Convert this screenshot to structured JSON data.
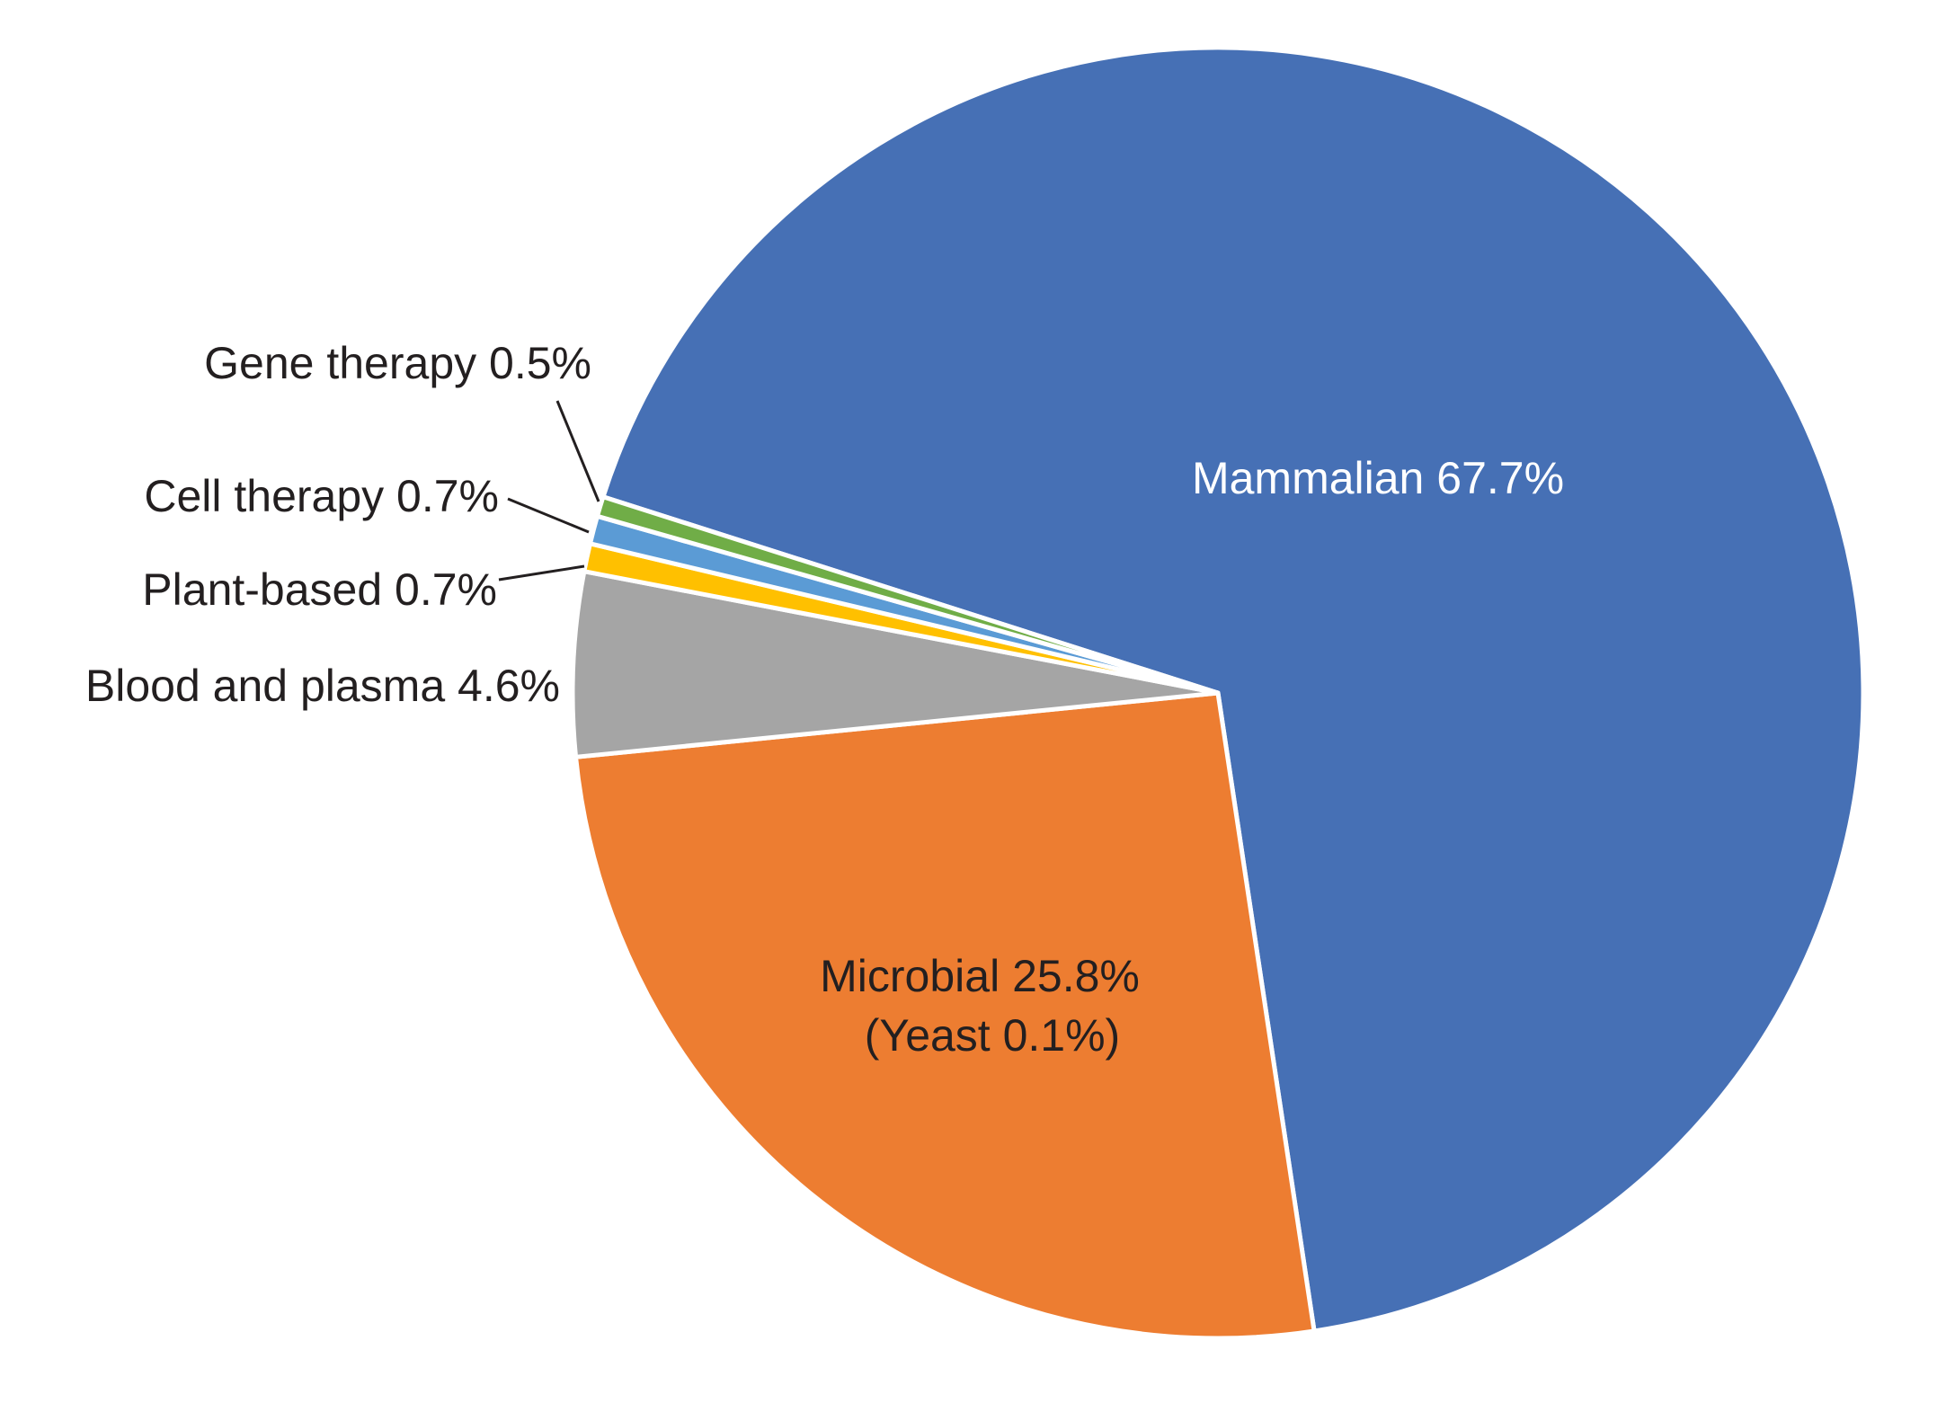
{
  "chart_data": {
    "type": "pie",
    "title": "",
    "slices": [
      {
        "label": "Mammalian 67.7%",
        "name": "Mammalian",
        "value": 67.7,
        "color": "#4670b5"
      },
      {
        "label": "Microbial 25.8%",
        "sublabel": "(Yeast 0.1%)",
        "name": "Microbial",
        "value": 25.8,
        "color": "#ed7d31"
      },
      {
        "label": "Blood and plasma 4.6%",
        "name": "Blood and plasma",
        "value": 4.6,
        "color": "#a5a5a5"
      },
      {
        "label": "Plant-based 0.7%",
        "name": "Plant-based",
        "value": 0.7,
        "color": "#ffc000"
      },
      {
        "label": "Cell therapy 0.7%",
        "name": "Cell therapy",
        "value": 0.7,
        "color": "#5b9bd5"
      },
      {
        "label": "Gene therapy 0.5%",
        "name": "Gene therapy",
        "value": 0.5,
        "color": "#70ad47"
      }
    ],
    "direction": "clockwise",
    "legend": "none (direct labels)"
  }
}
